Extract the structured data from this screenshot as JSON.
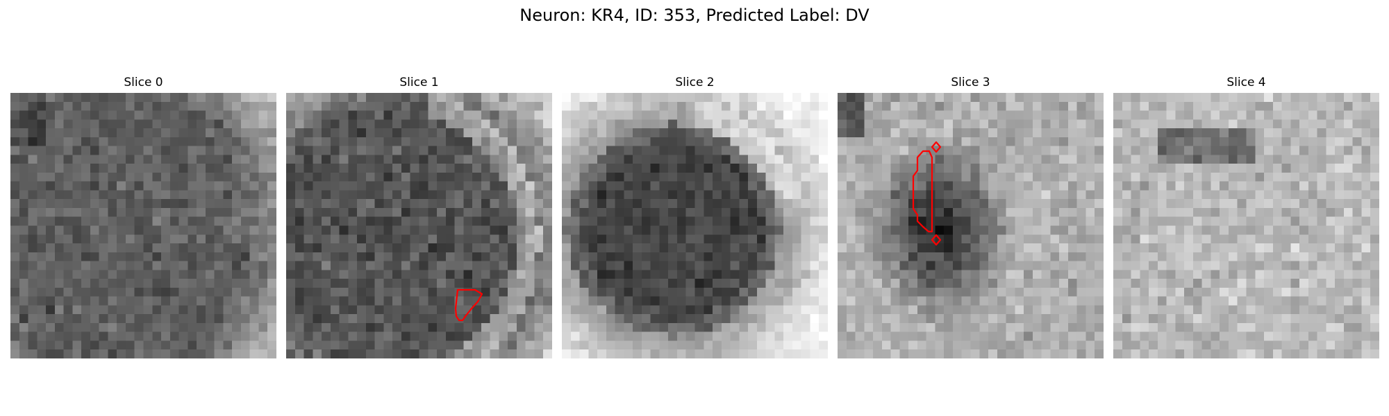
{
  "title": "Neuron: KR4, ID: 353, Predicted Label: DV",
  "panels": [
    {
      "label": "Slice 0",
      "has_contour": false
    },
    {
      "label": "Slice 1",
      "has_contour": true
    },
    {
      "label": "Slice 2",
      "has_contour": false
    },
    {
      "label": "Slice 3",
      "has_contour": true
    },
    {
      "label": "Slice 4",
      "has_contour": false
    }
  ],
  "colors": {
    "colormap": "grayscale",
    "contour": "#ff0000"
  }
}
